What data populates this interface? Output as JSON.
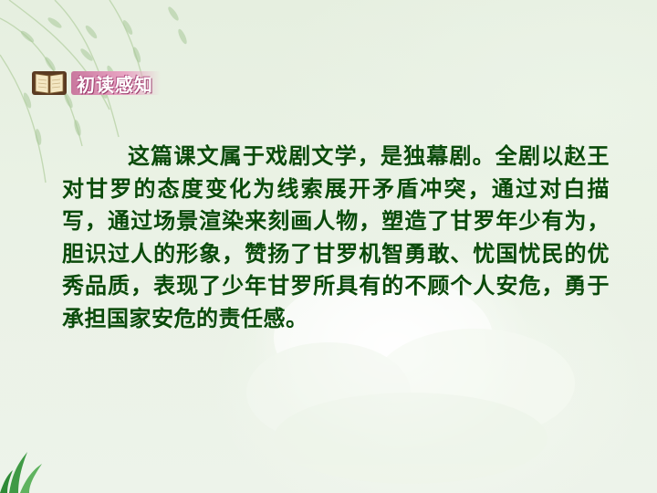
{
  "section_header": {
    "title": "初读感知",
    "icon": "open-book-icon"
  },
  "body": {
    "paragraph": "这篇课文属于戏剧文学，是独幕剧。全剧以赵王对甘罗的态度变化为线索展开矛盾冲突，通过对白描写，通过场景渲染来刻画人物，塑造了甘罗年少有为，胆识过人的形象，赞扬了甘罗机智勇敢、忧国忧民的优秀品质，表现了少年甘罗所具有的不顾个人安危，勇于承担国家安危的责任感。"
  },
  "colors": {
    "text": "#0a4a0a",
    "header_bg": "#d98bb2",
    "background": "#e8f0e3"
  }
}
